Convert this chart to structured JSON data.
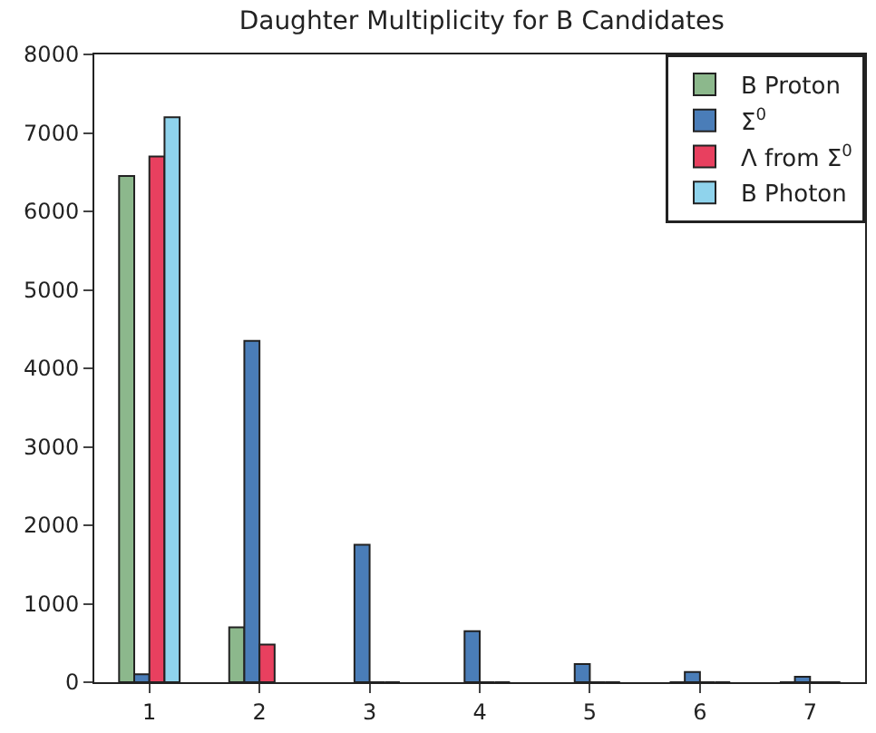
{
  "chart_data": {
    "type": "bar",
    "title": "Daughter Multiplicity for B Candidates",
    "categories": [
      "1",
      "2",
      "3",
      "4",
      "5",
      "6",
      "7"
    ],
    "series": [
      {
        "name": "B Proton",
        "color": "#8cb88c",
        "values": [
          6450,
          700,
          null,
          null,
          null,
          0,
          0
        ]
      },
      {
        "name": "Σ$^{0}$",
        "color": "#4a7db8",
        "values": [
          100,
          4350,
          1750,
          650,
          230,
          130,
          70
        ]
      },
      {
        "name": "Λ from Σ$^{0}$",
        "color": "#e8405f",
        "values": [
          6700,
          480,
          0,
          0,
          0,
          0,
          0
        ]
      },
      {
        "name": "B Photon",
        "color": "#8fd3ec",
        "values": [
          7200,
          null,
          0,
          0,
          0,
          0,
          0
        ]
      }
    ],
    "ylim": [
      0,
      8000
    ],
    "yticks": [
      0,
      1000,
      2000,
      3000,
      4000,
      5000,
      6000,
      7000,
      8000
    ],
    "legend": "top right"
  }
}
